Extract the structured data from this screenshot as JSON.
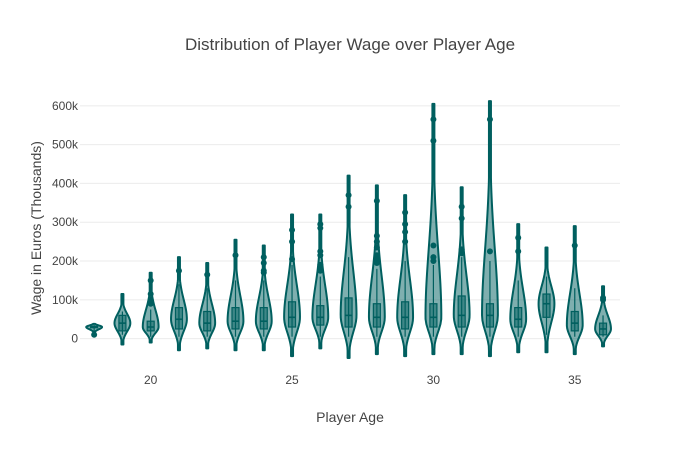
{
  "chart_data": {
    "type": "violin",
    "title": "Distribution of Player Wage over Player Age",
    "xlabel": "Player Age",
    "ylabel": "Wage in Euros (Thousands)",
    "xlim": [
      17.5,
      36.6
    ],
    "ylim": [
      -55,
      615
    ],
    "x_ticks": [
      20,
      25,
      30,
      35
    ],
    "y_ticks": [
      {
        "value": 0,
        "label": "0"
      },
      {
        "value": 100,
        "label": "100k"
      },
      {
        "value": 200,
        "label": "200k"
      },
      {
        "value": 300,
        "label": "300k"
      },
      {
        "value": 400,
        "label": "400k"
      },
      {
        "value": 500,
        "label": "500k"
      },
      {
        "value": 600,
        "label": "600k"
      }
    ],
    "grid": true,
    "legend": "none",
    "colors": {
      "line": "#005f5f",
      "fill": "rgba(0,95,95,0.5)"
    },
    "series": [
      {
        "age": 18,
        "min": 10,
        "q1": 28,
        "median": 30,
        "q3": 32,
        "max": 35,
        "kde_low": 15,
        "kde_high": 38,
        "mode": 30,
        "max_half_width": 0.28,
        "outliers": [
          10
        ]
      },
      {
        "age": 19,
        "min": 10,
        "q1": 20,
        "median": 40,
        "q3": 60,
        "max": 70,
        "kde_low": -15,
        "kde_high": 115,
        "mode": 40,
        "max_half_width": 0.28,
        "outliers": []
      },
      {
        "age": 20,
        "min": 5,
        "q1": 20,
        "median": 30,
        "q3": 45,
        "max": 75,
        "kde_low": -10,
        "kde_high": 170,
        "mode": 30,
        "max_half_width": 0.28,
        "outliers": [
          90,
          100,
          115,
          150
        ]
      },
      {
        "age": 21,
        "min": 5,
        "q1": 25,
        "median": 50,
        "q3": 80,
        "max": 140,
        "kde_low": -30,
        "kde_high": 210,
        "mode": 50,
        "max_half_width": 0.28,
        "outliers": [
          175
        ]
      },
      {
        "age": 22,
        "min": 5,
        "q1": 20,
        "median": 40,
        "q3": 70,
        "max": 130,
        "kde_low": -25,
        "kde_high": 195,
        "mode": 40,
        "max_half_width": 0.28,
        "outliers": [
          165
        ]
      },
      {
        "age": 23,
        "min": 5,
        "q1": 25,
        "median": 45,
        "q3": 80,
        "max": 150,
        "kde_low": -30,
        "kde_high": 255,
        "mode": 45,
        "max_half_width": 0.28,
        "outliers": [
          215
        ]
      },
      {
        "age": 24,
        "min": 5,
        "q1": 25,
        "median": 45,
        "q3": 80,
        "max": 150,
        "kde_low": -30,
        "kde_high": 240,
        "mode": 45,
        "max_half_width": 0.28,
        "outliers": [
          170,
          175,
          195,
          210
        ]
      },
      {
        "age": 25,
        "min": 5,
        "q1": 30,
        "median": 55,
        "q3": 95,
        "max": 190,
        "kde_low": -45,
        "kde_high": 320,
        "mode": 55,
        "max_half_width": 0.28,
        "outliers": [
          205,
          250,
          280
        ]
      },
      {
        "age": 26,
        "min": 5,
        "q1": 35,
        "median": 55,
        "q3": 85,
        "max": 160,
        "kde_low": -25,
        "kde_high": 320,
        "mode": 55,
        "max_half_width": 0.28,
        "outliers": [
          175,
          185,
          190,
          215,
          225,
          285,
          295
        ]
      },
      {
        "age": 27,
        "min": 5,
        "q1": 30,
        "median": 60,
        "q3": 105,
        "max": 210,
        "kde_low": -50,
        "kde_high": 420,
        "mode": 60,
        "max_half_width": 0.28,
        "outliers": [
          340,
          370
        ]
      },
      {
        "age": 28,
        "min": 5,
        "q1": 30,
        "median": 55,
        "q3": 90,
        "max": 180,
        "kde_low": -40,
        "kde_high": 395,
        "mode": 55,
        "max_half_width": 0.28,
        "outliers": [
          195,
          205,
          215,
          235,
          250,
          265,
          355
        ]
      },
      {
        "age": 29,
        "min": 5,
        "q1": 25,
        "median": 55,
        "q3": 95,
        "max": 200,
        "kde_low": -45,
        "kde_high": 370,
        "mode": 55,
        "max_half_width": 0.28,
        "outliers": [
          250,
          275,
          295,
          325
        ]
      },
      {
        "age": 30,
        "min": 5,
        "q1": 30,
        "median": 55,
        "q3": 90,
        "max": 190,
        "kde_low": -40,
        "kde_high": 605,
        "mode": 55,
        "max_half_width": 0.28,
        "outliers": [
          200,
          210,
          240,
          510,
          565
        ]
      },
      {
        "age": 31,
        "min": 5,
        "q1": 30,
        "median": 60,
        "q3": 110,
        "max": 210,
        "kde_low": -40,
        "kde_high": 390,
        "mode": 60,
        "max_half_width": 0.28,
        "outliers": [
          220,
          230,
          310,
          340
        ]
      },
      {
        "age": 32,
        "min": 5,
        "q1": 30,
        "median": 60,
        "q3": 90,
        "max": 200,
        "kde_low": -45,
        "kde_high": 612,
        "mode": 60,
        "max_half_width": 0.28,
        "outliers": [
          225,
          565
        ]
      },
      {
        "age": 33,
        "min": 5,
        "q1": 30,
        "median": 50,
        "q3": 80,
        "max": 150,
        "kde_low": -35,
        "kde_high": 295,
        "mode": 50,
        "max_half_width": 0.28,
        "outliers": [
          225,
          260
        ]
      },
      {
        "age": 34,
        "min": 10,
        "q1": 55,
        "median": 90,
        "q3": 115,
        "max": 160,
        "kde_low": -35,
        "kde_high": 235,
        "mode": 90,
        "max_half_width": 0.28,
        "outliers": []
      },
      {
        "age": 35,
        "min": 5,
        "q1": 20,
        "median": 40,
        "q3": 70,
        "max": 130,
        "kde_low": -40,
        "kde_high": 290,
        "mode": 35,
        "max_half_width": 0.28,
        "outliers": [
          240
        ]
      },
      {
        "age": 36,
        "min": 5,
        "q1": 10,
        "median": 25,
        "q3": 40,
        "max": 60,
        "kde_low": -20,
        "kde_high": 135,
        "mode": 25,
        "max_half_width": 0.28,
        "outliers": [
          100,
          105
        ]
      }
    ]
  }
}
